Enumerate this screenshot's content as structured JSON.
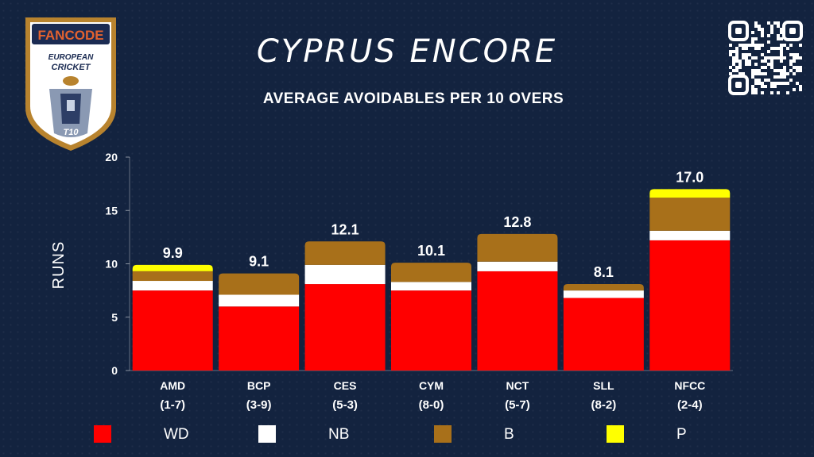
{
  "header": {
    "title": "CYPRUS ENCORE",
    "subtitle": "AVERAGE AVOIDABLES PER 10 OVERS"
  },
  "logo": {
    "brand": "FANCODE",
    "line1": "EUROPEAN",
    "line2": "CRICKET",
    "badge": "T10"
  },
  "colors": {
    "background": "#13233f",
    "WD": "#ff0000",
    "NB": "#ffffff",
    "B": "#a8701a",
    "P": "#ffff00",
    "logo_gold": "#b8832e",
    "logo_navy": "#1b2b52",
    "logo_orange": "#e3622f"
  },
  "chart_data": {
    "type": "bar",
    "stacked": true,
    "title": "AVERAGE AVOIDABLES PER 10 OVERS",
    "ylabel": "RUNS",
    "xlabel": "",
    "ylim": [
      0,
      20
    ],
    "yticks": [
      0,
      5,
      10,
      15,
      20
    ],
    "grid": false,
    "categories": [
      {
        "name": "AMD",
        "record": "(1-7)"
      },
      {
        "name": "BCP",
        "record": "(3-9)"
      },
      {
        "name": "CES",
        "record": "(5-3)"
      },
      {
        "name": "CYM",
        "record": "(8-0)"
      },
      {
        "name": "NCT",
        "record": "(5-7)"
      },
      {
        "name": "SLL",
        "record": "(8-2)"
      },
      {
        "name": "NFCC",
        "record": "(2-4)"
      }
    ],
    "totals": [
      "9.9",
      "9.1",
      "12.1",
      "10.1",
      "12.8",
      "8.1",
      "17.0"
    ],
    "series": [
      {
        "name": "WD",
        "color": "#ff0000",
        "values": [
          7.5,
          6.0,
          8.1,
          7.5,
          9.3,
          6.8,
          12.2
        ]
      },
      {
        "name": "NB",
        "color": "#ffffff",
        "values": [
          0.9,
          1.1,
          1.8,
          0.8,
          0.9,
          0.7,
          0.9
        ]
      },
      {
        "name": "B",
        "color": "#a8701a",
        "values": [
          0.9,
          2.0,
          2.2,
          1.8,
          2.6,
          0.6,
          3.1
        ]
      },
      {
        "name": "P",
        "color": "#ffff00",
        "values": [
          0.6,
          0.0,
          0.0,
          0.0,
          0.0,
          0.0,
          0.8
        ]
      }
    ],
    "legend_position": "bottom"
  }
}
